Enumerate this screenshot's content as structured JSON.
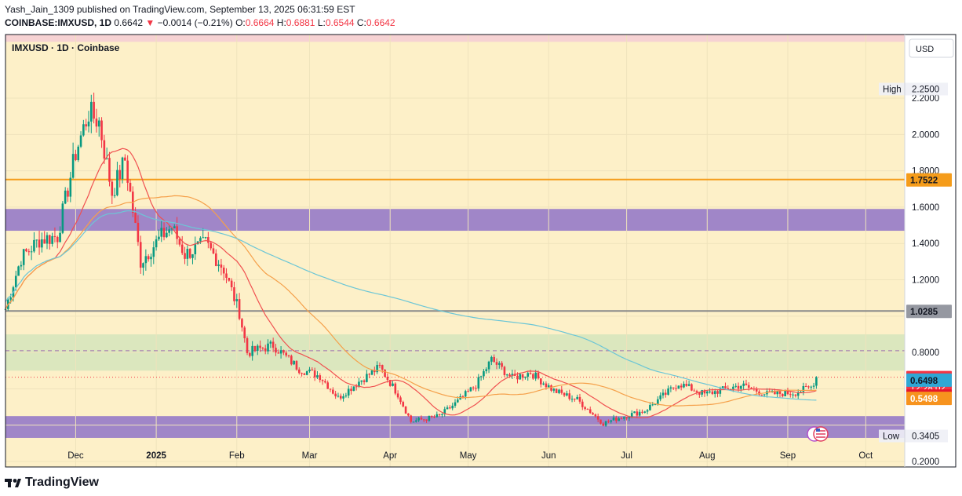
{
  "header": {
    "line1": "Yash_Jain_1309 published on TradingView.com, September 13, 2025 06:31:59 EST",
    "symbol": "COINBASE:IMXUSD, 1D",
    "last": "0.6642",
    "change_arrow": "▼",
    "change": "−0.0014 (−0.21%)",
    "o_label": "O:",
    "o": "0.6664",
    "h_label": "H:",
    "h": "0.6881",
    "l_label": "L:",
    "l": "0.6544",
    "c_label": "C:",
    "c": "0.6642"
  },
  "footer": {
    "brand": "TradingView",
    "logo_icon": "tradingview-logo-icon"
  },
  "chart_data": {
    "type": "candlestick",
    "title": "IMXUSD · 1D · Coinbase",
    "currency": "USD",
    "y_ticks": [
      "2.2000",
      "2.0000",
      "1.8000",
      "1.6000",
      "1.4000",
      "1.2000",
      "0.8000",
      "0.2000"
    ],
    "ylim": [
      0.17,
      2.55
    ],
    "x_ticks": [
      {
        "label": "Dec",
        "date": "2024-12-01"
      },
      {
        "label": "2025",
        "date": "2025-01-01"
      },
      {
        "label": "Feb",
        "date": "2025-02-01"
      },
      {
        "label": "Mar",
        "date": "2025-03-01"
      },
      {
        "label": "Apr",
        "date": "2025-04-01"
      },
      {
        "label": "May",
        "date": "2025-05-01"
      },
      {
        "label": "Jun",
        "date": "2025-06-01"
      },
      {
        "label": "Jul",
        "date": "2025-07-01"
      },
      {
        "label": "Aug",
        "date": "2025-08-01"
      },
      {
        "label": "Sep",
        "date": "2025-09-01"
      },
      {
        "label": "Oct",
        "date": "2025-10-01"
      }
    ],
    "xlim": [
      "2024-11-04",
      "2025-10-16"
    ],
    "price_labels": [
      {
        "text": "High",
        "value": "2.2500",
        "y": 2.25,
        "style": "plain"
      },
      {
        "text": "",
        "value": "1.7522",
        "y": 1.7522,
        "style": "orange"
      },
      {
        "text": "",
        "value": "1.0285",
        "y": 1.0285,
        "style": "gray"
      },
      {
        "text": "",
        "value": "0.6642",
        "y": 0.6642,
        "style": "red",
        "sub": "12:28:02"
      },
      {
        "text": "",
        "value": "0.6498",
        "y": 0.6498,
        "style": "blue"
      },
      {
        "text": "",
        "value": "0.5626",
        "y": 0.5626,
        "style": "crimson"
      },
      {
        "text": "",
        "value": "0.5498",
        "y": 0.5498,
        "style": "amber"
      },
      {
        "text": "Low",
        "value": "0.3405",
        "y": 0.3405,
        "style": "plain"
      }
    ],
    "zones": [
      {
        "from": 1.47,
        "to": 1.59,
        "color": "#9b7fc8"
      },
      {
        "from": 0.7,
        "to": 0.9,
        "color": "#d9e6be"
      },
      {
        "from": 0.33,
        "to": 0.45,
        "color": "#9b7fc8"
      },
      {
        "from": 2.51,
        "to": 2.55,
        "color": "#f5d0d4"
      }
    ],
    "hlines": [
      {
        "y": 1.7522,
        "color": "#f59c1a",
        "style": "solid"
      },
      {
        "y": 1.0285,
        "color": "#8a8a8a",
        "style": "solid"
      },
      {
        "y": 0.81,
        "color": "#a070b0",
        "style": "dashed"
      },
      {
        "y": 0.6642,
        "color": "#f23645",
        "style": "dotted"
      }
    ],
    "anchors": [
      [
        "2024-11-04",
        1.04
      ],
      [
        "2024-11-10",
        1.32
      ],
      [
        "2024-11-17",
        1.42
      ],
      [
        "2024-11-24",
        1.44
      ],
      [
        "2024-12-01",
        1.9
      ],
      [
        "2024-12-06",
        2.12
      ],
      [
        "2024-12-10",
        2.07
      ],
      [
        "2024-12-15",
        1.68
      ],
      [
        "2024-12-20",
        1.86
      ],
      [
        "2024-12-26",
        1.3
      ],
      [
        "2025-01-03",
        1.44
      ],
      [
        "2025-01-07",
        1.49
      ],
      [
        "2025-01-12",
        1.34
      ],
      [
        "2025-01-20",
        1.4
      ],
      [
        "2025-01-27",
        1.26
      ],
      [
        "2025-02-02",
        1.02
      ],
      [
        "2025-02-05",
        0.8
      ],
      [
        "2025-02-15",
        0.84
      ],
      [
        "2025-02-25",
        0.71
      ],
      [
        "2025-03-05",
        0.67
      ],
      [
        "2025-03-12",
        0.55
      ],
      [
        "2025-03-20",
        0.64
      ],
      [
        "2025-03-28",
        0.72
      ],
      [
        "2025-04-04",
        0.57
      ],
      [
        "2025-04-09",
        0.42
      ],
      [
        "2025-04-20",
        0.45
      ],
      [
        "2025-04-27",
        0.53
      ],
      [
        "2025-05-04",
        0.62
      ],
      [
        "2025-05-10",
        0.76
      ],
      [
        "2025-05-18",
        0.66
      ],
      [
        "2025-05-25",
        0.69
      ],
      [
        "2025-06-03",
        0.59
      ],
      [
        "2025-06-12",
        0.54
      ],
      [
        "2025-06-22",
        0.41
      ],
      [
        "2025-06-28",
        0.44
      ],
      [
        "2025-07-08",
        0.48
      ],
      [
        "2025-07-21",
        0.63
      ],
      [
        "2025-07-31",
        0.57
      ],
      [
        "2025-08-14",
        0.62
      ],
      [
        "2025-08-24",
        0.57
      ],
      [
        "2025-09-04",
        0.58
      ],
      [
        "2025-09-10",
        0.61
      ],
      [
        "2025-09-12",
        0.6642
      ]
    ],
    "moving_averages": [
      {
        "color": "#f05050",
        "period": 20
      },
      {
        "color": "#f5a04a",
        "period": 50
      },
      {
        "color": "#6cc6d6",
        "period": 200
      }
    ],
    "colors": {
      "up": "#089981",
      "down": "#f23645",
      "bg": "#fdf0c8",
      "grid": "#efe3bc"
    }
  }
}
